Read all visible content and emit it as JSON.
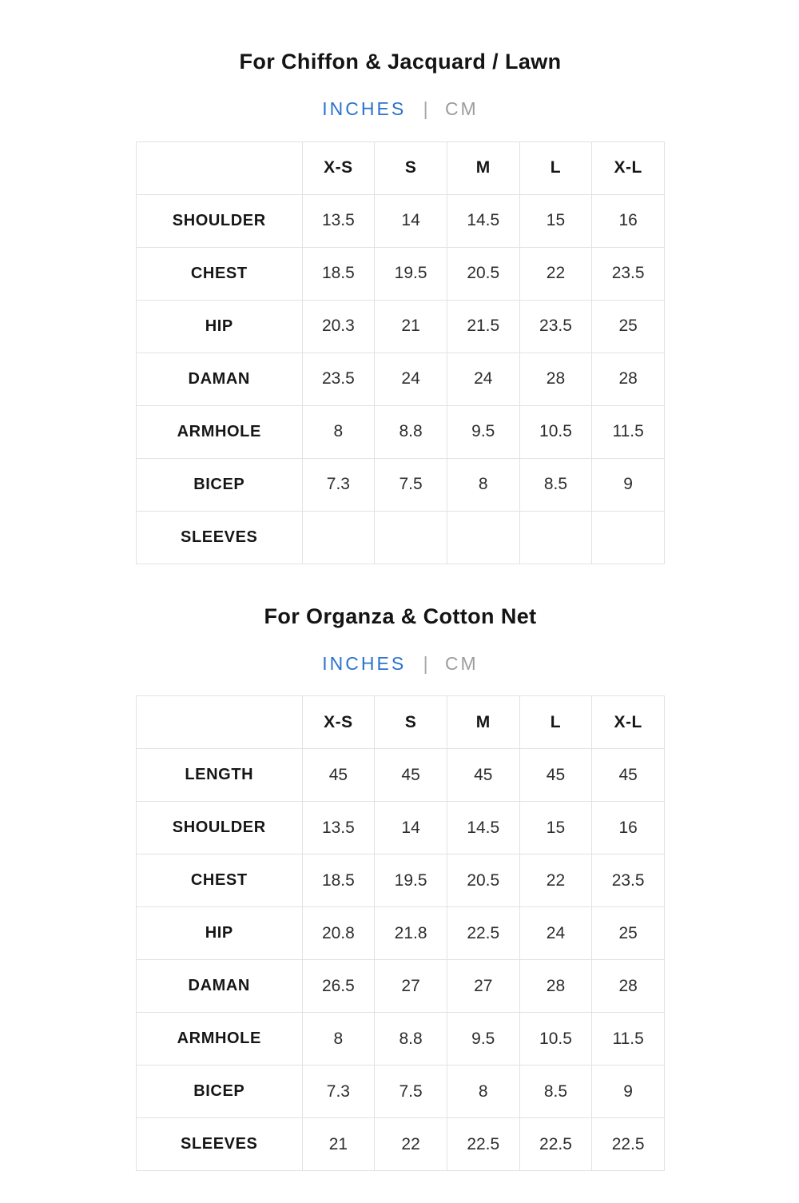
{
  "colors": {
    "accent_blue": "#2b72cd",
    "muted_gray": "#9c9c9c",
    "border_gray": "#e2e2e2",
    "title_text": "#141414"
  },
  "unit_toggle": {
    "inches_label": "INCHES",
    "cm_label": "CM",
    "divider": "|",
    "selected": "INCHES"
  },
  "size_columns": [
    "X-S",
    "S",
    "M",
    "L",
    "X-L"
  ],
  "tables": [
    {
      "title": "For Chiffon & Jacquard / Lawn",
      "rows": [
        {
          "label": "SHOULDER",
          "values": [
            "13.5",
            "14",
            "14.5",
            "15",
            "16"
          ]
        },
        {
          "label": "CHEST",
          "values": [
            "18.5",
            "19.5",
            "20.5",
            "22",
            "23.5"
          ]
        },
        {
          "label": "HIP",
          "values": [
            "20.3",
            "21",
            "21.5",
            "23.5",
            "25"
          ]
        },
        {
          "label": "DAMAN",
          "values": [
            "23.5",
            "24",
            "24",
            "28",
            "28"
          ]
        },
        {
          "label": "ARMHOLE",
          "values": [
            "8",
            "8.8",
            "9.5",
            "10.5",
            "11.5"
          ]
        },
        {
          "label": "BICEP",
          "values": [
            "7.3",
            "7.5",
            "8",
            "8.5",
            "9"
          ]
        },
        {
          "label": "SLEEVES",
          "values": [
            "",
            "",
            "",
            "",
            ""
          ]
        }
      ]
    },
    {
      "title": "For Organza & Cotton Net",
      "rows": [
        {
          "label": "LENGTH",
          "values": [
            "45",
            "45",
            "45",
            "45",
            "45"
          ]
        },
        {
          "label": "SHOULDER",
          "values": [
            "13.5",
            "14",
            "14.5",
            "15",
            "16"
          ]
        },
        {
          "label": "CHEST",
          "values": [
            "18.5",
            "19.5",
            "20.5",
            "22",
            "23.5"
          ]
        },
        {
          "label": "HIP",
          "values": [
            "20.8",
            "21.8",
            "22.5",
            "24",
            "25"
          ]
        },
        {
          "label": "DAMAN",
          "values": [
            "26.5",
            "27",
            "27",
            "28",
            "28"
          ]
        },
        {
          "label": "ARMHOLE",
          "values": [
            "8",
            "8.8",
            "9.5",
            "10.5",
            "11.5"
          ]
        },
        {
          "label": "BICEP",
          "values": [
            "7.3",
            "7.5",
            "8",
            "8.5",
            "9"
          ]
        },
        {
          "label": "SLEEVES",
          "values": [
            "21",
            "22",
            "22.5",
            "22.5",
            "22.5"
          ]
        }
      ]
    }
  ]
}
